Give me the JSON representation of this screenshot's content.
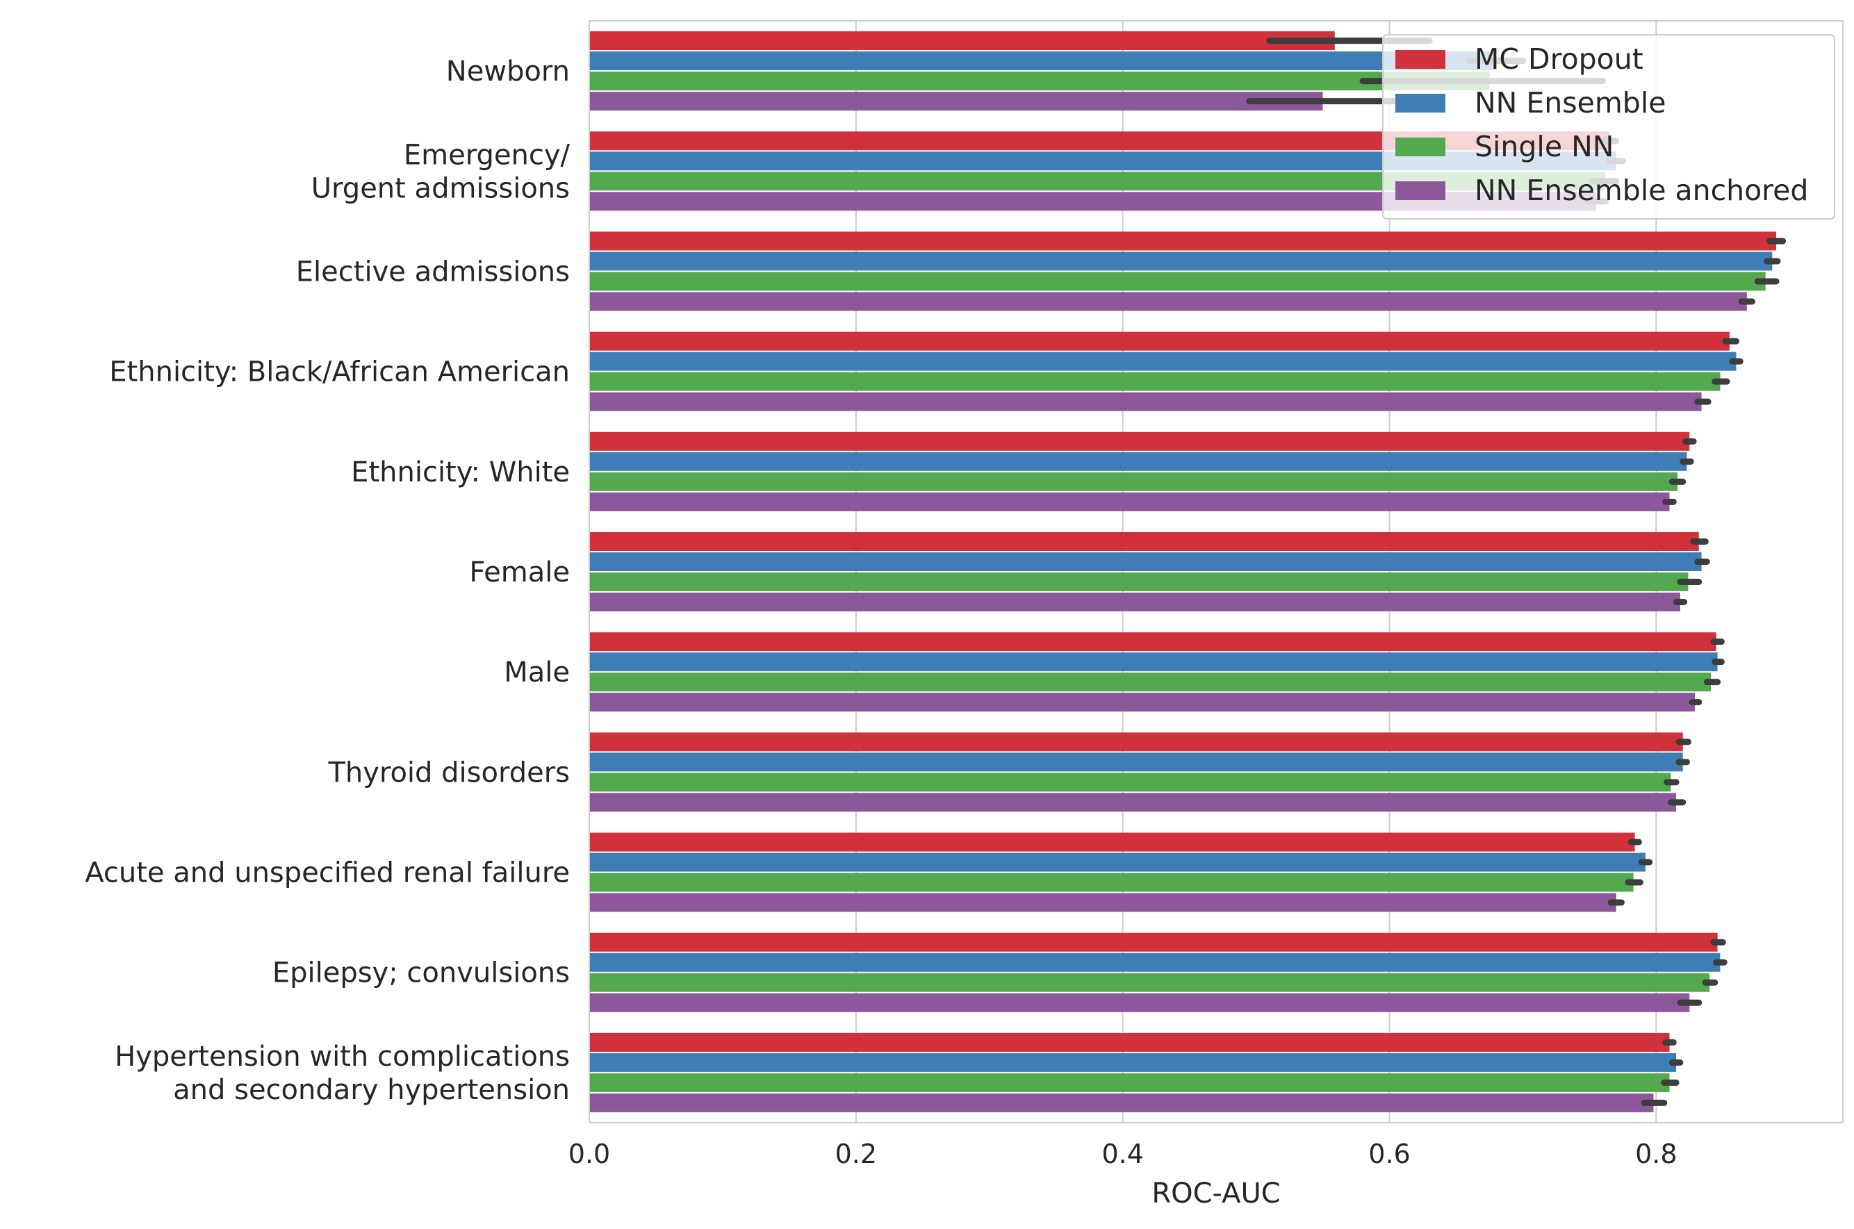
{
  "chart_data": {
    "type": "bar",
    "orientation": "horizontal",
    "title": "",
    "xlabel": "ROC-AUC",
    "ylabel": "",
    "xlim": [
      0,
      0.94
    ],
    "xticks": [
      "0.0",
      "0.2",
      "0.4",
      "0.6",
      "0.8"
    ],
    "grid": true,
    "legend_position": "top-right",
    "categories": [
      [
        "Newborn"
      ],
      [
        "Emergency/",
        "Urgent admissions"
      ],
      [
        "Elective admissions"
      ],
      [
        "Ethnicity: Black/African American"
      ],
      [
        "Ethnicity: White"
      ],
      [
        "Female"
      ],
      [
        "Male"
      ],
      [
        "Thyroid disorders"
      ],
      [
        "Acute and unspecified renal failure"
      ],
      [
        "Epilepsy; convulsions"
      ],
      [
        "Hypertension with complications",
        "and secondary hypertension"
      ]
    ],
    "series": [
      {
        "name": "MC Dropout",
        "color": "#d1313a",
        "values": [
          0.559,
          0.765,
          0.89,
          0.855,
          0.825,
          0.832,
          0.845,
          0.82,
          0.784,
          0.846,
          0.81
        ],
        "errors": [
          [
            0.51,
            0.63
          ],
          [
            0.758,
            0.77
          ],
          [
            0.885,
            0.895
          ],
          [
            0.852,
            0.86
          ],
          [
            0.822,
            0.828
          ],
          [
            0.828,
            0.837
          ],
          [
            0.843,
            0.849
          ],
          [
            0.817,
            0.824
          ],
          [
            0.781,
            0.787
          ],
          [
            0.843,
            0.85
          ],
          [
            0.807,
            0.813
          ]
        ]
      },
      {
        "name": "NN Ensemble",
        "color": "#3f7db7",
        "values": [
          0.68,
          0.77,
          0.887,
          0.86,
          0.823,
          0.834,
          0.846,
          0.82,
          0.792,
          0.848,
          0.815
        ],
        "errors": [
          [
            0.66,
            0.7
          ],
          [
            0.765,
            0.775
          ],
          [
            0.883,
            0.891
          ],
          [
            0.857,
            0.863
          ],
          [
            0.82,
            0.826
          ],
          [
            0.831,
            0.838
          ],
          [
            0.844,
            0.849
          ],
          [
            0.817,
            0.823
          ],
          [
            0.789,
            0.795
          ],
          [
            0.845,
            0.851
          ],
          [
            0.812,
            0.818
          ]
        ]
      },
      {
        "name": "Single NN",
        "color": "#54a84d",
        "values": [
          0.675,
          0.762,
          0.882,
          0.848,
          0.816,
          0.824,
          0.841,
          0.811,
          0.783,
          0.84,
          0.81
        ],
        "errors": [
          [
            0.58,
            0.76
          ],
          [
            0.752,
            0.77
          ],
          [
            0.876,
            0.89
          ],
          [
            0.844,
            0.853
          ],
          [
            0.812,
            0.82
          ],
          [
            0.818,
            0.832
          ],
          [
            0.838,
            0.846
          ],
          [
            0.808,
            0.815
          ],
          [
            0.779,
            0.788
          ],
          [
            0.837,
            0.844
          ],
          [
            0.806,
            0.815
          ]
        ]
      },
      {
        "name": "NN Ensemble anchored",
        "color": "#8c579b",
        "values": [
          0.55,
          0.755,
          0.868,
          0.834,
          0.81,
          0.818,
          0.829,
          0.815,
          0.77,
          0.825,
          0.798
        ],
        "errors": [
          [
            0.495,
            0.61
          ],
          [
            0.748,
            0.762
          ],
          [
            0.864,
            0.872
          ],
          [
            0.831,
            0.839
          ],
          [
            0.807,
            0.813
          ],
          [
            0.815,
            0.821
          ],
          [
            0.827,
            0.832
          ],
          [
            0.811,
            0.82
          ],
          [
            0.766,
            0.774
          ],
          [
            0.818,
            0.832
          ],
          [
            0.791,
            0.806
          ]
        ]
      }
    ]
  }
}
